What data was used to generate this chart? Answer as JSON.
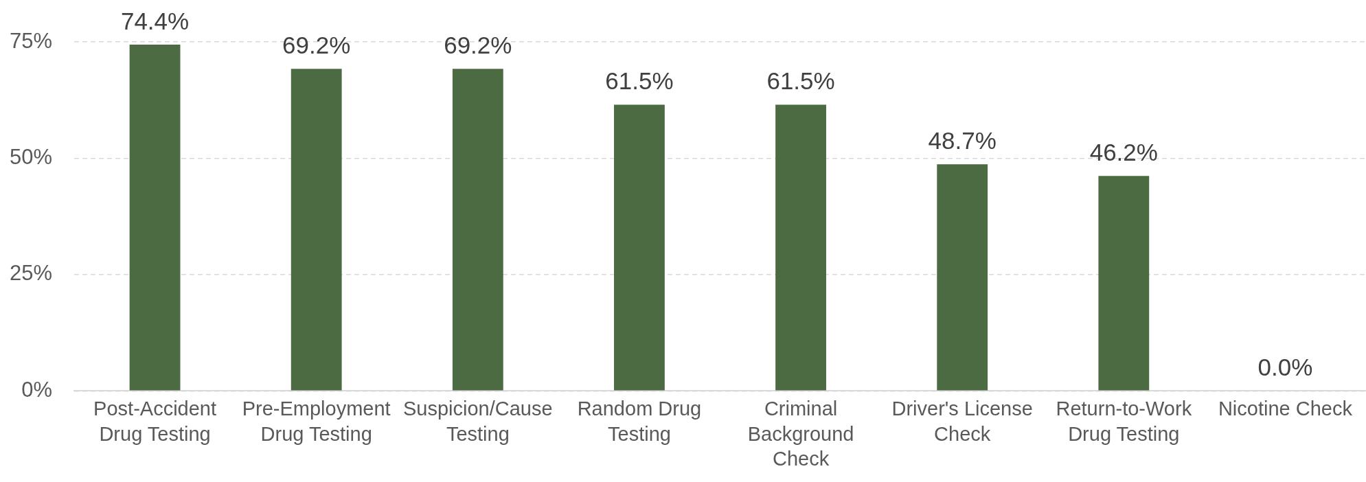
{
  "chart_data": {
    "type": "bar",
    "categories": [
      "Post-Accident Drug Testing",
      "Pre-Employment Drug Testing",
      "Suspicion/Cause Testing",
      "Random Drug Testing",
      "Criminal Background Check",
      "Driver's License Check",
      "Return-to-Work Drug Testing",
      "Nicotine Check"
    ],
    "values": [
      74.4,
      69.2,
      69.2,
      61.5,
      61.5,
      48.7,
      46.2,
      0
    ],
    "value_labels": [
      "74.4%",
      "69.2%",
      "69.2%",
      "61.5%",
      "61.5%",
      "48.7%",
      "46.2%",
      "0.0%"
    ],
    "color": "#4d6b42",
    "ylim": [
      0,
      75
    ],
    "yticks": [
      {
        "value": 0,
        "label": "0%"
      },
      {
        "value": 25,
        "label": "25%"
      },
      {
        "value": 50,
        "label": "50%"
      },
      {
        "value": 75,
        "label": "75%"
      }
    ],
    "grid": "y"
  }
}
